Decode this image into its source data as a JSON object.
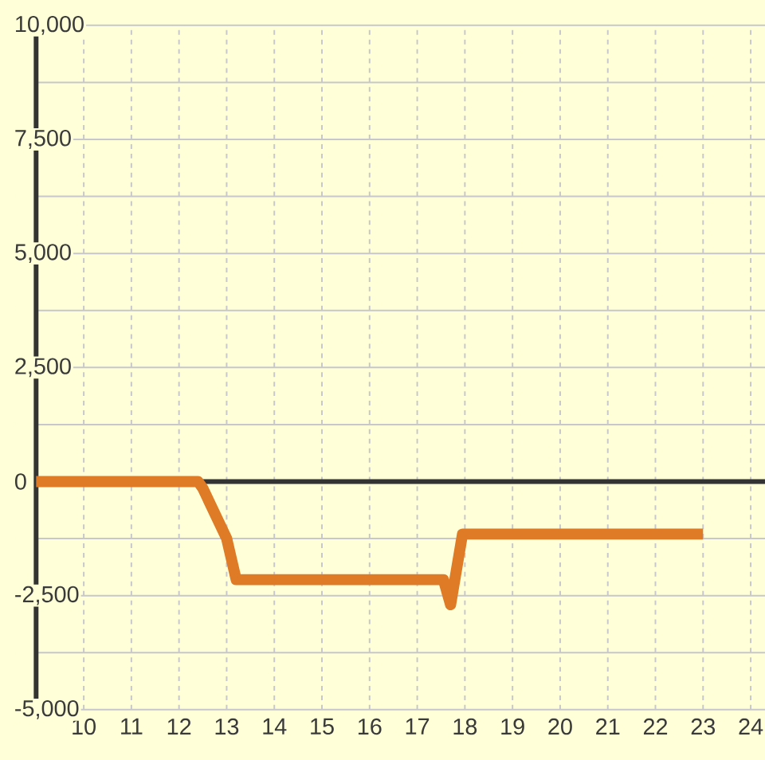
{
  "chart_data": {
    "type": "line",
    "x": [
      9,
      12.4,
      12.5,
      13.0,
      13.2,
      17.55,
      17.7,
      17.95,
      23
    ],
    "series": [
      {
        "color": "#df7a26",
        "values": [
          0,
          0,
          -150,
          -1250,
          -2150,
          -2150,
          -2700,
          -1150,
          -1150
        ]
      }
    ],
    "xlim": [
      9,
      24.3
    ],
    "ylim": [
      -5000,
      10000
    ],
    "xticks": [
      10,
      11,
      12,
      13,
      14,
      15,
      16,
      17,
      18,
      19,
      20,
      21,
      22,
      23,
      24
    ],
    "yticks": [
      {
        "value": -5000,
        "label": "-5,000"
      },
      {
        "value": -3750,
        "label": null
      },
      {
        "value": -2500,
        "label": "-2,500"
      },
      {
        "value": -1250,
        "label": null
      },
      0,
      {
        "value": 1250,
        "label": null
      },
      {
        "value": 2500,
        "label": "2,500"
      },
      {
        "value": 3750,
        "label": null
      },
      {
        "value": 5000,
        "label": "5,000"
      },
      {
        "value": 6250,
        "label": null
      },
      {
        "value": 7500,
        "label": "7,500"
      },
      {
        "value": 8750,
        "label": null
      },
      {
        "value": 10000,
        "label": "10,000"
      }
    ],
    "grid": true,
    "line_style": "solid",
    "ref_lines": [
      {
        "axis": "y",
        "value": 0,
        "color": "#333333"
      }
    ]
  }
}
